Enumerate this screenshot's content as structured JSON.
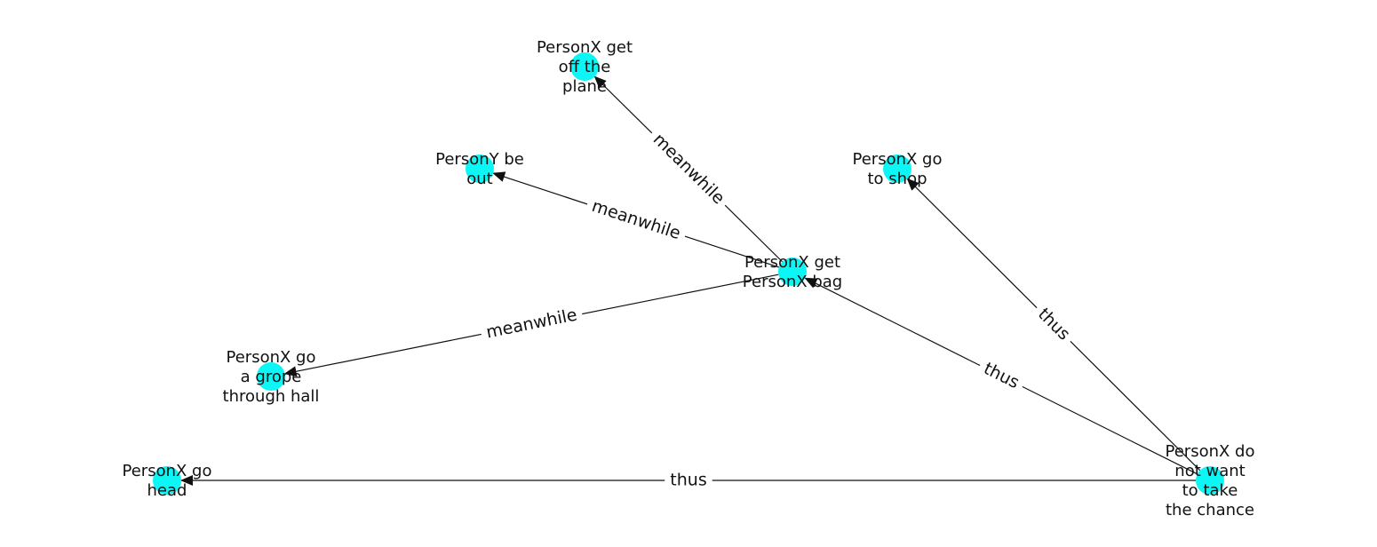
{
  "graph": {
    "node_color": "#00f5f5",
    "nodes": [
      {
        "id": "plane",
        "lines": [
          "PersonX get",
          "off the",
          "plane"
        ]
      },
      {
        "id": "persony",
        "lines": [
          "PersonY be",
          "out"
        ]
      },
      {
        "id": "shop",
        "lines": [
          "PersonX go",
          "to shop"
        ]
      },
      {
        "id": "bag",
        "lines": [
          "PersonX get",
          "PersonX bag"
        ]
      },
      {
        "id": "grope",
        "lines": [
          "PersonX go",
          "a grope",
          "through hall"
        ]
      },
      {
        "id": "head",
        "lines": [
          "PersonX go",
          "head"
        ]
      },
      {
        "id": "chance",
        "lines": [
          "PersonX do",
          "not want",
          "to take",
          "the chance"
        ]
      }
    ],
    "edges": [
      {
        "from": "bag",
        "to": "plane",
        "label": "meanwhile"
      },
      {
        "from": "bag",
        "to": "persony",
        "label": "meanwhile"
      },
      {
        "from": "bag",
        "to": "grope",
        "label": "meanwhile"
      },
      {
        "from": "chance",
        "to": "shop",
        "label": "thus"
      },
      {
        "from": "chance",
        "to": "bag",
        "label": "thus"
      },
      {
        "from": "chance",
        "to": "head",
        "label": "thus"
      }
    ]
  }
}
